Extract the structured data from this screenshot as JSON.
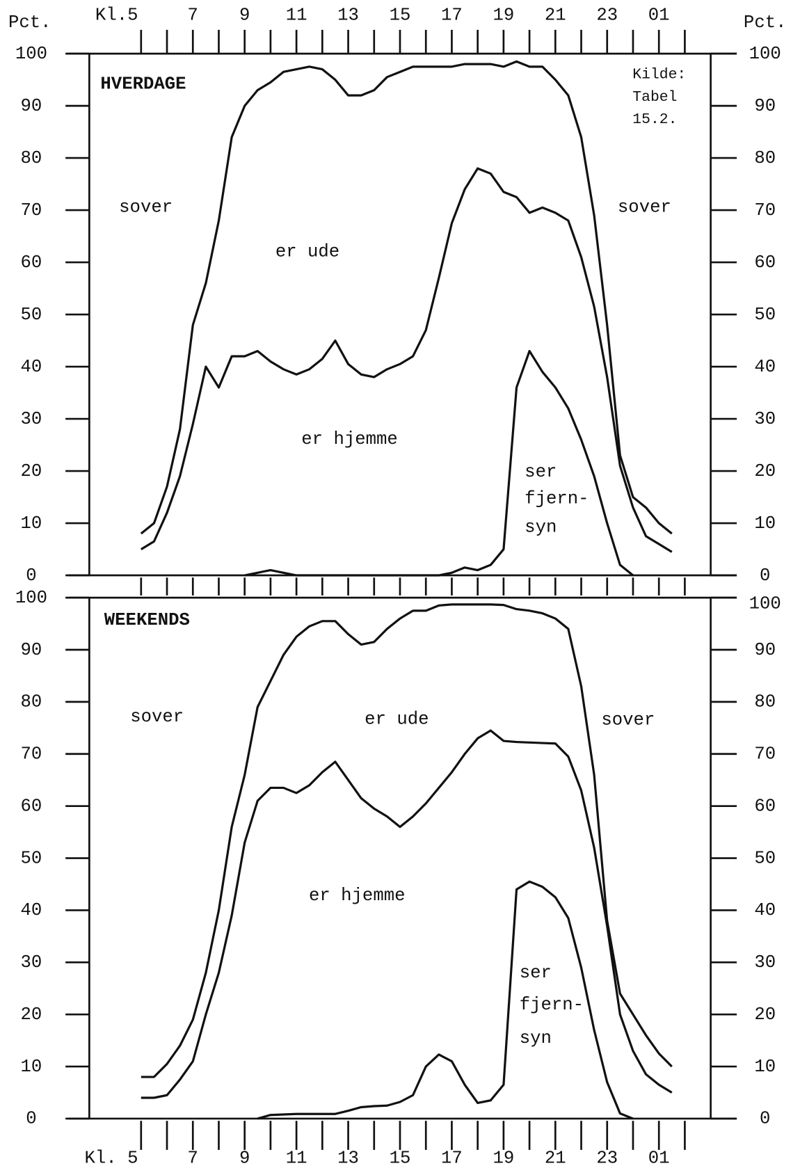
{
  "chart_data": [
    {
      "type": "line",
      "title": "HVERDAGE",
      "y_axis_label": "Pct.",
      "annotations": [
        "Kilde:",
        "Tabel",
        "15.2.",
        "sover",
        "sover",
        "er ude",
        "er hjemme",
        "ser",
        "fjern-",
        "syn"
      ],
      "x": [
        5,
        5.5,
        6,
        6.5,
        7,
        7.5,
        8,
        8.5,
        9,
        9.5,
        10,
        10.5,
        11,
        11.5,
        12,
        12.5,
        13,
        13.5,
        14,
        14.5,
        15,
        15.5,
        16,
        16.5,
        17,
        17.5,
        18,
        18.5,
        19,
        19.5,
        20,
        20.5,
        21,
        21.5,
        22,
        22.5,
        23,
        23.5,
        24,
        24.5,
        25,
        25.5
      ],
      "series": [
        {
          "color": "#111",
          "values": [
            8,
            10,
            17,
            28,
            48,
            56,
            68,
            84,
            90,
            93,
            94.5,
            96.5,
            97,
            97.5,
            97,
            95,
            92,
            92,
            93,
            95.5,
            96.5,
            97.5,
            97.5,
            97.5,
            97.5,
            98,
            98,
            98,
            97.5,
            98.5,
            97.5,
            97.5,
            95,
            92,
            84,
            69,
            48,
            23,
            15,
            13,
            10,
            8
          ]
        },
        {
          "color": "#111",
          "values": [
            5,
            6.5,
            12,
            19,
            29,
            40,
            36,
            42,
            42,
            43,
            41,
            39.5,
            38.5,
            39.5,
            41.5,
            45,
            40.5,
            38.5,
            38,
            39.5,
            40.5,
            42,
            47,
            57,
            67.5,
            74,
            78,
            77,
            73.5,
            72.5,
            69.5,
            70.5,
            69.5,
            68,
            61,
            51.5,
            38,
            21,
            13,
            7.5,
            6,
            4.5
          ]
        },
        {
          "color": "#111",
          "values": [
            null,
            null,
            null,
            null,
            null,
            null,
            null,
            null,
            0,
            0.5,
            1,
            0.5,
            0,
            0,
            0,
            0,
            0,
            0,
            0,
            0,
            0,
            0,
            0,
            0,
            0.5,
            1.5,
            1,
            2,
            5,
            36,
            43,
            39,
            36,
            32,
            26,
            19,
            10,
            2,
            0,
            null,
            null,
            null
          ]
        }
      ],
      "xlim": [
        3,
        27
      ],
      "ylim": [
        0,
        100
      ],
      "yticks": [
        0,
        10,
        20,
        30,
        40,
        50,
        60,
        70,
        80,
        90,
        100
      ],
      "xticks": [
        {
          "value": 5,
          "label": "Kl.5"
        },
        7,
        9,
        11,
        13,
        15,
        17,
        19,
        21,
        23,
        {
          "value": 25,
          "label": "01"
        }
      ],
      "xminorticks": [
        5,
        6,
        7,
        8,
        9,
        10,
        11,
        12,
        13,
        14,
        15,
        16,
        17,
        18,
        19,
        20,
        21,
        22,
        23,
        24,
        25,
        26
      ]
    },
    {
      "type": "line",
      "title": "WEEKENDS",
      "annotations": [
        "sover",
        "er ude",
        "sover",
        "er hjemme",
        "ser",
        "fjern-",
        "syn"
      ],
      "x": [
        5,
        5.5,
        6,
        6.5,
        7,
        7.5,
        8,
        8.5,
        9,
        9.5,
        10,
        10.5,
        11,
        11.5,
        12,
        12.5,
        13,
        13.5,
        14,
        14.5,
        15,
        15.5,
        16,
        16.5,
        17,
        17.5,
        18,
        18.5,
        19,
        19.5,
        20,
        20.5,
        21,
        21.5,
        22,
        22.5,
        23,
        23.5,
        24,
        24.5,
        25,
        25.5
      ],
      "series": [
        {
          "color": "#111",
          "values": [
            8,
            8,
            10.5,
            14,
            19,
            28,
            40,
            56,
            66,
            79,
            84,
            89,
            92.5,
            94.5,
            95.5,
            95.5,
            93,
            91,
            91.5,
            94,
            96,
            97.5,
            97.5,
            98.5,
            98.7,
            98.7,
            98.7,
            98.7,
            98.6,
            97.8,
            97.5,
            97,
            96,
            94,
            83,
            66,
            38,
            24,
            20,
            16,
            12.5,
            10
          ]
        },
        {
          "color": "#111",
          "values": [
            4,
            4,
            4.5,
            7.5,
            11,
            20,
            28,
            39,
            53,
            61,
            63.5,
            63.5,
            62.5,
            64,
            66.5,
            68.5,
            65,
            61.5,
            59.5,
            58,
            56,
            58,
            60.5,
            63.5,
            66.5,
            70,
            73,
            74.5,
            72.5,
            72.3,
            72.2,
            72.1,
            72,
            69.5,
            63,
            52,
            37,
            20,
            13,
            8.5,
            6.5,
            5
          ]
        },
        {
          "color": "#111",
          "values": [
            null,
            null,
            null,
            null,
            null,
            null,
            null,
            null,
            null,
            0,
            0.7,
            0.8,
            0.9,
            0.9,
            0.9,
            0.9,
            1.5,
            2.2,
            2.4,
            2.5,
            3.2,
            4.5,
            10,
            12.3,
            11,
            6.5,
            3,
            3.5,
            6.5,
            44,
            45.5,
            44.5,
            42.5,
            38.5,
            29,
            17,
            7,
            1,
            0,
            null,
            null,
            null
          ]
        }
      ],
      "xlim": [
        3,
        27
      ],
      "ylim": [
        0,
        100
      ],
      "yticks": [
        0,
        10,
        20,
        30,
        40,
        50,
        60,
        70,
        80,
        90,
        100
      ],
      "xticks": [
        {
          "value": 5,
          "label": "Kl. 5"
        },
        7,
        9,
        11,
        13,
        15,
        17,
        19,
        21,
        23,
        {
          "value": 25,
          "label": "01"
        }
      ],
      "xminorticks": [
        5,
        6,
        7,
        8,
        9,
        10,
        11,
        12,
        13,
        14,
        15,
        16,
        17,
        18,
        19,
        20,
        21,
        22,
        23,
        24,
        25,
        26
      ]
    }
  ]
}
